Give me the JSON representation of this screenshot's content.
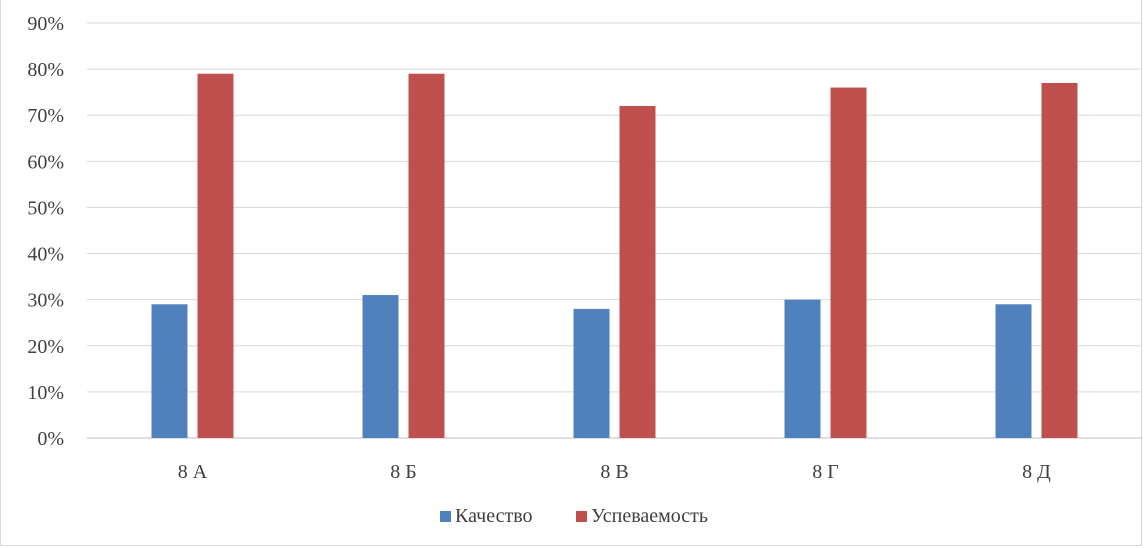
{
  "chart_data": {
    "type": "bar",
    "categories": [
      "8 А",
      "8 Б",
      "8 В",
      "8 Г",
      "8 Д"
    ],
    "series": [
      {
        "name": "Качество",
        "values": [
          29,
          31,
          28,
          30,
          29
        ],
        "color": "#4f81bd"
      },
      {
        "name": "Успеваемость",
        "values": [
          79,
          79,
          72,
          76,
          77
        ],
        "color": "#c0504d"
      }
    ],
    "y_ticks": [
      "0%",
      "10%",
      "20%",
      "30%",
      "40%",
      "50%",
      "60%",
      "70%",
      "80%",
      "90%"
    ],
    "ylim": [
      0,
      90
    ],
    "grid": true,
    "legend_position": "bottom"
  }
}
